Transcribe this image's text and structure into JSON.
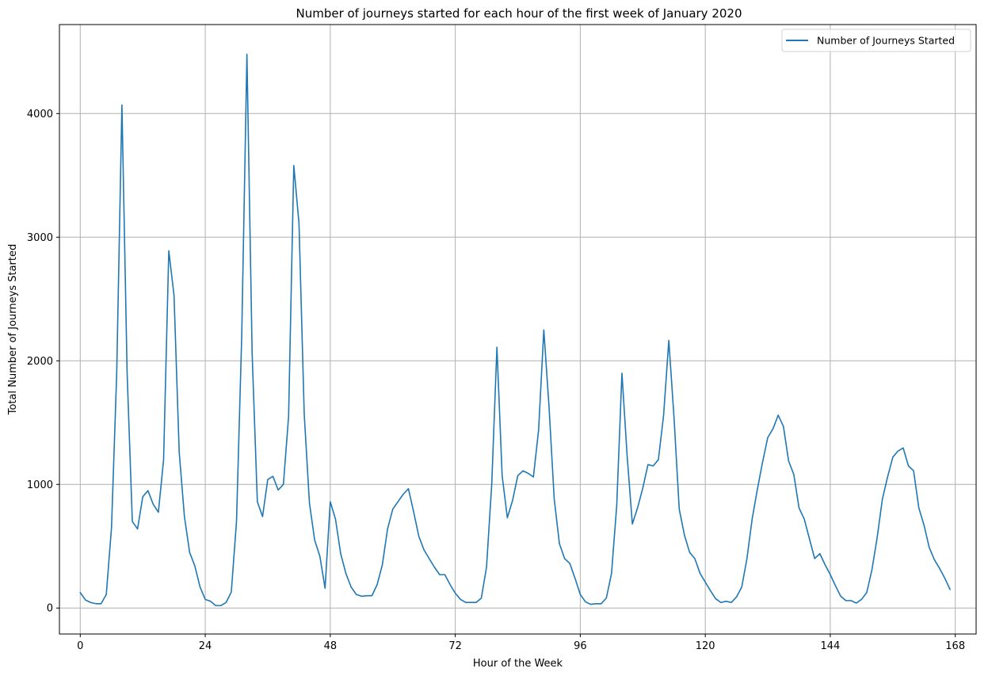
{
  "chart_data": {
    "type": "line",
    "title": "Number of journeys started for each hour of the first week of January 2020",
    "xlabel": "Hour of the Week",
    "ylabel": "Total Number of Journeys Started",
    "xlim": [
      -4,
      172
    ],
    "ylim": [
      -210,
      4720
    ],
    "xticks": [
      0,
      24,
      48,
      72,
      96,
      120,
      144,
      168
    ],
    "yticks": [
      0,
      1000,
      2000,
      3000,
      4000
    ],
    "xtick_labels": [
      "0",
      "24",
      "48",
      "72",
      "96",
      "120",
      "144",
      "168"
    ],
    "ytick_labels": [
      "0",
      "1000",
      "2000",
      "3000",
      "4000"
    ],
    "grid": true,
    "legend_position": "top-right",
    "series": [
      {
        "name": "Number of Journeys Started",
        "color": "#1f77b4",
        "values": [
          125,
          65,
          45,
          35,
          35,
          110,
          650,
          1900,
          4070,
          1900,
          700,
          640,
          900,
          950,
          840,
          775,
          1200,
          2890,
          2530,
          1260,
          740,
          450,
          340,
          170,
          70,
          55,
          20,
          20,
          45,
          130,
          700,
          2200,
          4480,
          2060,
          860,
          740,
          1040,
          1065,
          955,
          1000,
          1550,
          3580,
          3110,
          1570,
          850,
          550,
          420,
          160,
          860,
          720,
          440,
          280,
          170,
          110,
          95,
          100,
          100,
          190,
          350,
          640,
          800,
          860,
          920,
          965,
          780,
          580,
          470,
          400,
          330,
          270,
          270,
          190,
          120,
          70,
          45,
          45,
          45,
          80,
          330,
          1000,
          2110,
          1070,
          730,
          870,
          1070,
          1110,
          1090,
          1060,
          1440,
          2250,
          1630,
          880,
          520,
          400,
          360,
          240,
          110,
          50,
          30,
          35,
          35,
          80,
          280,
          830,
          1900,
          1230,
          680,
          810,
          970,
          1160,
          1150,
          1200,
          1560,
          2165,
          1540,
          800,
          590,
          450,
          400,
          280,
          210,
          140,
          75,
          45,
          55,
          45,
          90,
          170,
          400,
          720,
          960,
          1180,
          1380,
          1450,
          1560,
          1470,
          1190,
          1080,
          810,
          720,
          560,
          400,
          440,
          350,
          270,
          180,
          95,
          60,
          60,
          40,
          70,
          125,
          310,
          570,
          880,
          1060,
          1220,
          1270,
          1295,
          1150,
          1110,
          810,
          670,
          490,
          390,
          320,
          240,
          150
        ]
      }
    ]
  }
}
